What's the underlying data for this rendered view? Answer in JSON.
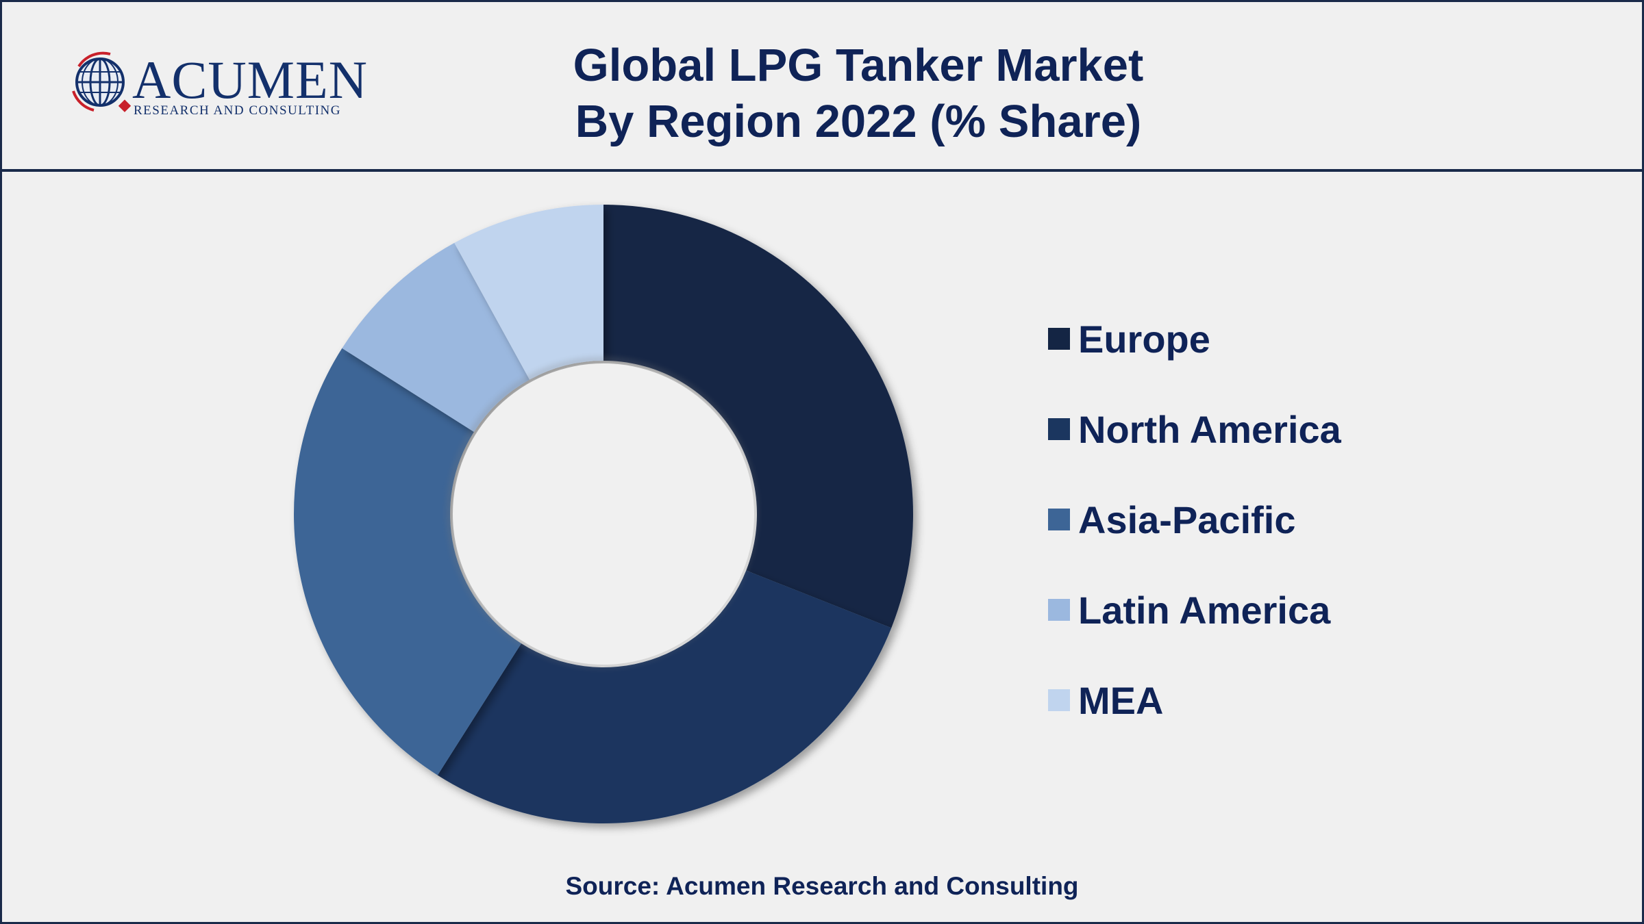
{
  "logo": {
    "name": "ACUMEN",
    "subtitle": "RESEARCH AND CONSULTING"
  },
  "header": {
    "title_line1": "Global LPG Tanker Market",
    "title_line2": "By Region 2022 (% Share)"
  },
  "source": "Source: Acumen Research and Consulting",
  "chart_data": {
    "type": "pie",
    "variant": "donut",
    "title": "Global LPG Tanker Market By Region 2022 (% Share)",
    "categories": [
      "Europe",
      "North America",
      "Asia-Pacific",
      "Latin America",
      "MEA"
    ],
    "values": [
      31,
      28,
      25,
      8,
      8
    ],
    "colors": [
      "#142544",
      "#1b365f",
      "#3d6596",
      "#9bb8df",
      "#c0d4ee"
    ],
    "legend_position": "right"
  }
}
